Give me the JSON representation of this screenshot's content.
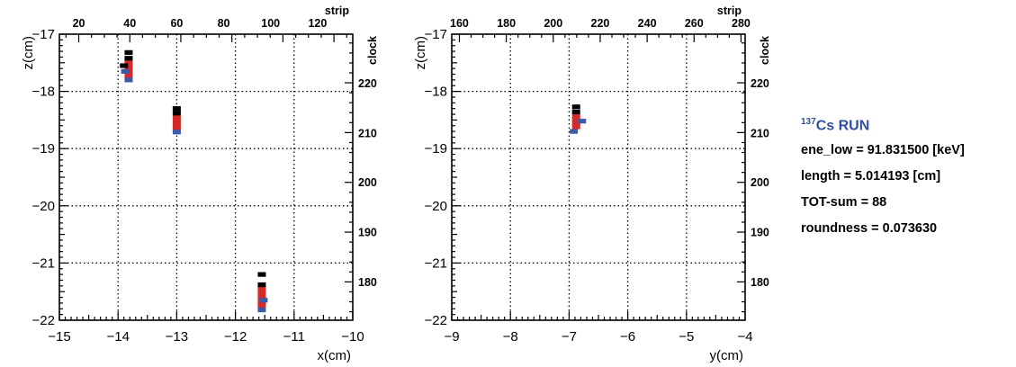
{
  "chart_data": [
    {
      "type": "scatter",
      "xlabel": "x(cm)",
      "ylabel": "z(cm)",
      "top_axis_label": "strip",
      "right_axis_label": "clock",
      "xlim": [
        -15,
        -10
      ],
      "ylim": [
        -22,
        -17
      ],
      "x_ticks": [
        "−15",
        "−14",
        "−13",
        "−12",
        "−11",
        "−10"
      ],
      "y_ticks": [
        "−22",
        "−21",
        "−20",
        "−19",
        "−18",
        "−17"
      ],
      "top_ticks": [
        {
          "value": 20,
          "x": -14.67,
          "label": "20"
        },
        {
          "value": 40,
          "x": -13.8,
          "label": "40"
        },
        {
          "value": 60,
          "x": -13.0,
          "label": "60"
        },
        {
          "value": 80,
          "x": -12.2,
          "label": "80"
        },
        {
          "value": 100,
          "x": -11.4,
          "label": "100"
        },
        {
          "value": 120,
          "x": -10.6,
          "label": "120"
        }
      ],
      "right_ticks": [
        {
          "value": 220,
          "z": -17.85,
          "label": "220"
        },
        {
          "value": 210,
          "z": -18.72,
          "label": "210"
        },
        {
          "value": 200,
          "z": -19.58,
          "label": "200"
        },
        {
          "value": 190,
          "z": -20.45,
          "label": "190"
        },
        {
          "value": 180,
          "z": -21.32,
          "label": "180"
        }
      ],
      "grid": true,
      "series": [
        {
          "color": "#000000",
          "points": [
            [
              -13.82,
              -17.32
            ],
            [
              -13.82,
              -17.42
            ],
            [
              -13.9,
              -17.55
            ],
            [
              -13.0,
              -18.3
            ],
            [
              -13.0,
              -18.38
            ],
            [
              -11.55,
              -21.2
            ],
            [
              -11.55,
              -21.38
            ]
          ]
        },
        {
          "color": "#d42a2a",
          "points": [
            [
              -13.82,
              -17.49
            ],
            [
              -13.82,
              -17.55
            ],
            [
              -13.82,
              -17.61
            ],
            [
              -13.82,
              -17.67
            ],
            [
              -13.82,
              -17.73
            ],
            [
              -13.0,
              -18.45
            ],
            [
              -13.0,
              -18.52
            ],
            [
              -13.0,
              -18.58
            ],
            [
              -13.0,
              -18.64
            ],
            [
              -11.55,
              -21.44
            ],
            [
              -11.55,
              -21.5
            ],
            [
              -11.55,
              -21.56
            ],
            [
              -11.55,
              -21.62
            ],
            [
              -11.55,
              -21.68
            ],
            [
              -11.55,
              -21.74
            ]
          ]
        },
        {
          "color": "#3a5ba8",
          "points": [
            [
              -13.88,
              -17.65
            ],
            [
              -13.82,
              -17.8
            ],
            [
              -13.0,
              -18.71
            ],
            [
              -11.52,
              -21.65
            ],
            [
              -11.55,
              -21.82
            ]
          ]
        }
      ]
    },
    {
      "type": "scatter",
      "xlabel": "y(cm)",
      "ylabel": "z(cm)",
      "top_axis_label": "strip",
      "right_axis_label": "clock",
      "xlim": [
        -9,
        -4
      ],
      "ylim": [
        -22,
        -17
      ],
      "x_ticks": [
        "−9",
        "−8",
        "−7",
        "−6",
        "−5",
        "−4"
      ],
      "y_ticks": [
        "−22",
        "−21",
        "−20",
        "−19",
        "−18",
        "−17"
      ],
      "top_ticks": [
        {
          "value": 160,
          "x": -8.87,
          "label": "160"
        },
        {
          "value": 180,
          "x": -8.07,
          "label": "180"
        },
        {
          "value": 200,
          "x": -7.27,
          "label": "200"
        },
        {
          "value": 220,
          "x": -6.47,
          "label": "220"
        },
        {
          "value": 240,
          "x": -5.67,
          "label": "240"
        },
        {
          "value": 260,
          "x": -4.87,
          "label": "260"
        },
        {
          "value": 280,
          "x": -4.07,
          "label": "280"
        }
      ],
      "right_ticks": [
        {
          "value": 220,
          "z": -17.85,
          "label": "220"
        },
        {
          "value": 210,
          "z": -18.72,
          "label": "210"
        },
        {
          "value": 200,
          "z": -19.58,
          "label": "200"
        },
        {
          "value": 190,
          "z": -20.45,
          "label": "190"
        },
        {
          "value": 180,
          "z": -21.32,
          "label": "180"
        }
      ],
      "grid": true,
      "series": [
        {
          "color": "#000000",
          "points": [
            [
              -6.88,
              -18.27
            ],
            [
              -6.88,
              -18.36
            ]
          ]
        },
        {
          "color": "#d42a2a",
          "points": [
            [
              -6.88,
              -18.44
            ],
            [
              -6.88,
              -18.5
            ],
            [
              -6.88,
              -18.56
            ],
            [
              -6.88,
              -18.62
            ]
          ]
        },
        {
          "color": "#3a5ba8",
          "points": [
            [
              -6.92,
              -18.7
            ],
            [
              -6.78,
              -18.52
            ]
          ]
        }
      ]
    }
  ],
  "info": {
    "title_sup": "137",
    "title": "Cs RUN",
    "lines": [
      "ene_low = 91.831500 [keV]",
      "length = 5.014193 [cm]",
      "TOT-sum = 88",
      "roundness = 0.073630"
    ]
  }
}
